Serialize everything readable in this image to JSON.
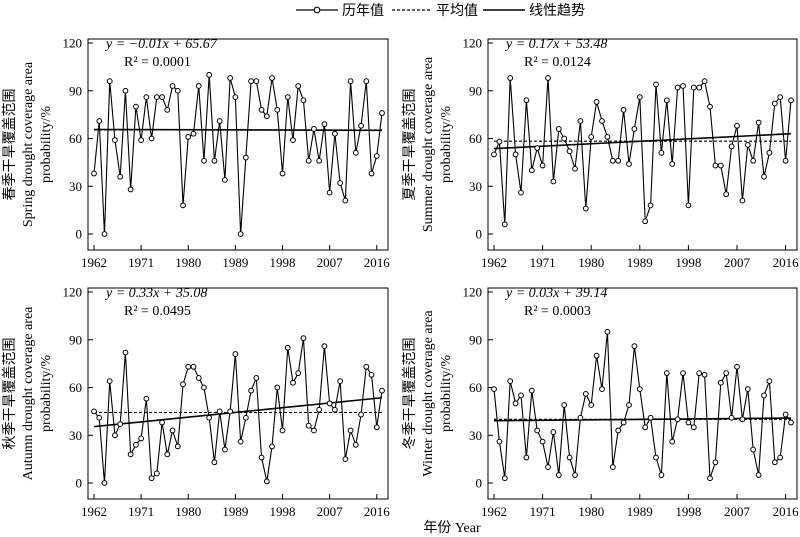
{
  "legend": {
    "observed": "历年值",
    "mean": "平均值",
    "trend": "线性趋势"
  },
  "xlabel": "年份 Year",
  "chart_data": [
    {
      "type": "line",
      "ylabel_cn": "春季干旱覆盖范围",
      "ylabel_en1": "Spring drought coverage area",
      "ylabel_en2": "probability/%",
      "equation": "y = −0.01x + 65.67",
      "r2": "R² = 0.0001",
      "trend": {
        "slope": -0.01,
        "intercept": 65.67
      },
      "mean": 65.4,
      "xlim": [
        1962,
        2017
      ],
      "ylim": [
        0,
        120
      ],
      "xticks": [
        "1962",
        "1971",
        "1980",
        "1989",
        "1998",
        "2007",
        "2016"
      ],
      "yticks": [
        "0",
        "30",
        "60",
        "90",
        "120"
      ],
      "x_start": 1962,
      "values": [
        38,
        71,
        0,
        96,
        59,
        36,
        90,
        28,
        80,
        59,
        86,
        60,
        86,
        86,
        78,
        93,
        90,
        18,
        61,
        63,
        93,
        46,
        100,
        46,
        71,
        34,
        98,
        86,
        0,
        48,
        96,
        96,
        78,
        74,
        98,
        78,
        38,
        86,
        59,
        93,
        84,
        46,
        66,
        46,
        69,
        26,
        63,
        32,
        21,
        96,
        51,
        68,
        96,
        38,
        49,
        76
      ]
    },
    {
      "type": "line",
      "ylabel_cn": "夏季干旱覆盖范围",
      "ylabel_en1": "Summer drought coverage area",
      "ylabel_en2": "probability/%",
      "equation": "y = 0.17x + 53.48",
      "r2": "R² = 0.0124",
      "trend": {
        "slope": 0.17,
        "intercept": 53.48
      },
      "mean": 58.3,
      "xlim": [
        1962,
        2017
      ],
      "ylim": [
        0,
        120
      ],
      "xticks": [
        "1962",
        "1971",
        "1980",
        "1989",
        "1998",
        "2007",
        "2016"
      ],
      "yticks": [
        "0",
        "30",
        "60",
        "90",
        "120"
      ],
      "x_start": 1962,
      "values": [
        50,
        58,
        6,
        98,
        50,
        26,
        84,
        40,
        54,
        43,
        98,
        33,
        66,
        60,
        52,
        41,
        71,
        16,
        61,
        83,
        71,
        61,
        46,
        46,
        78,
        44,
        66,
        86,
        8,
        18,
        94,
        51,
        84,
        44,
        92,
        93,
        18,
        92,
        92,
        96,
        80,
        43,
        43,
        25,
        55,
        68,
        21,
        56,
        46,
        70,
        36,
        51,
        82,
        86,
        46,
        84
      ]
    },
    {
      "type": "line",
      "ylabel_cn": "秋季干旱覆盖范围",
      "ylabel_en1": "Autumn drought coverage area",
      "ylabel_en2": "probability/%",
      "equation": "y = 0.33x + 35.08",
      "r2": "R² = 0.0495",
      "trend": {
        "slope": 0.33,
        "intercept": 35.08
      },
      "mean": 44.3,
      "xlim": [
        1962,
        2017
      ],
      "ylim": [
        0,
        120
      ],
      "xticks": [
        "1962",
        "1971",
        "1980",
        "1989",
        "1998",
        "2007",
        "2016"
      ],
      "yticks": [
        "0",
        "30",
        "60",
        "90",
        "120"
      ],
      "x_start": 1962,
      "values": [
        45,
        41,
        0,
        64,
        30,
        37,
        82,
        18,
        24,
        28,
        53,
        3,
        6,
        38,
        18,
        33,
        23,
        62,
        73,
        73,
        66,
        60,
        41,
        13,
        45,
        21,
        45,
        81,
        26,
        41,
        58,
        66,
        16,
        1,
        23,
        60,
        33,
        85,
        63,
        69,
        91,
        36,
        33,
        46,
        86,
        50,
        46,
        64,
        15,
        33,
        24,
        43,
        73,
        68,
        35,
        58
      ]
    },
    {
      "type": "line",
      "ylabel_cn": "冬季干旱覆盖范围",
      "ylabel_en1": "Winter drought coverage area",
      "ylabel_en2": "probability/%",
      "equation": "y = 0.03x + 39.14",
      "r2": "R² = 0.0003",
      "trend": {
        "slope": 0.03,
        "intercept": 39.14
      },
      "mean": 40.0,
      "xlim": [
        1962,
        2017
      ],
      "ylim": [
        0,
        120
      ],
      "xticks": [
        "1962",
        "1971",
        "1980",
        "1989",
        "1998",
        "2007",
        "2016"
      ],
      "yticks": [
        "0",
        "30",
        "60",
        "90",
        "120"
      ],
      "x_start": 1962,
      "values": [
        59,
        26,
        3,
        64,
        50,
        55,
        16,
        58,
        33,
        26,
        10,
        32,
        5,
        49,
        16,
        5,
        41,
        56,
        49,
        80,
        59,
        95,
        10,
        33,
        38,
        49,
        86,
        59,
        35,
        41,
        16,
        5,
        69,
        26,
        40,
        69,
        38,
        35,
        69,
        68,
        3,
        13,
        63,
        69,
        41,
        73,
        40,
        59,
        21,
        5,
        55,
        64,
        13,
        16,
        43,
        38
      ]
    }
  ]
}
